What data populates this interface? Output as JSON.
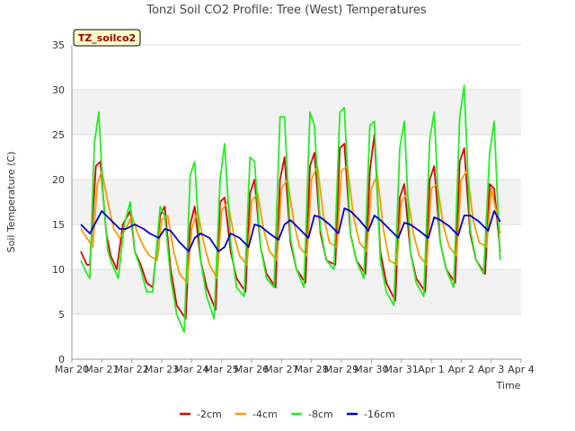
{
  "chart_data": {
    "type": "line",
    "title": "Tonzi Soil CO2 Profile: Tree (West) Temperatures",
    "xlabel": "Time",
    "ylabel": "Soil Temperature (C)",
    "badge": "TZ_soilco2",
    "xlim": [
      0,
      15
    ],
    "ylim": [
      0,
      35
    ],
    "x_ticks": [
      {
        "value": 0,
        "label": "Mar 20"
      },
      {
        "value": 1,
        "label": "Mar 21"
      },
      {
        "value": 2,
        "label": "Mar 22"
      },
      {
        "value": 3,
        "label": "Mar 23"
      },
      {
        "value": 4,
        "label": "Mar 24"
      },
      {
        "value": 5,
        "label": "Mar 25"
      },
      {
        "value": 6,
        "label": "Mar 26"
      },
      {
        "value": 7,
        "label": "Mar 27"
      },
      {
        "value": 8,
        "label": "Mar 28"
      },
      {
        "value": 9,
        "label": "Mar 29"
      },
      {
        "value": 10,
        "label": "Mar 30"
      },
      {
        "value": 11,
        "label": "Mar 31"
      },
      {
        "value": 12,
        "label": "Apr 1"
      },
      {
        "value": 13,
        "label": "Apr 2"
      },
      {
        "value": 14,
        "label": "Apr 3"
      },
      {
        "value": 15,
        "label": "Apr 4"
      }
    ],
    "y_ticks": [
      0,
      5,
      10,
      15,
      20,
      25,
      30,
      35
    ],
    "grid": true,
    "legend_position": "bottom",
    "series": [
      {
        "name": "-2cm",
        "color": "#dd0000",
        "x": [
          0.3,
          0.5,
          0.6,
          0.8,
          0.95,
          1.15,
          1.3,
          1.5,
          1.7,
          1.95,
          2.1,
          2.3,
          2.5,
          2.7,
          2.95,
          3.1,
          3.3,
          3.5,
          3.8,
          3.95,
          4.1,
          4.3,
          4.5,
          4.8,
          4.95,
          5.1,
          5.3,
          5.5,
          5.8,
          5.95,
          6.1,
          6.3,
          6.5,
          6.8,
          6.95,
          7.1,
          7.3,
          7.5,
          7.8,
          7.95,
          8.1,
          8.3,
          8.5,
          8.8,
          8.95,
          9.1,
          9.3,
          9.5,
          9.8,
          9.95,
          10.1,
          10.3,
          10.5,
          10.8,
          10.95,
          11.1,
          11.3,
          11.5,
          11.8,
          11.95,
          12.1,
          12.3,
          12.5,
          12.8,
          12.95,
          13.1,
          13.3,
          13.5,
          13.8,
          13.95,
          14.1,
          14.3
        ],
        "y": [
          12.0,
          10.5,
          10.5,
          21.5,
          22.0,
          14.0,
          11.5,
          10.0,
          15.0,
          16.5,
          12.0,
          10.5,
          8.5,
          8.0,
          16.0,
          17.0,
          10.0,
          6.0,
          4.5,
          15.0,
          17.0,
          11.0,
          8.0,
          5.5,
          17.5,
          18.0,
          12.0,
          9.0,
          7.5,
          18.5,
          20.0,
          12.5,
          9.5,
          8.0,
          20.0,
          22.5,
          13.0,
          10.0,
          8.5,
          21.5,
          23.0,
          14.0,
          11.0,
          10.5,
          23.5,
          24.0,
          14.0,
          11.0,
          9.5,
          21.0,
          25.0,
          12.0,
          8.5,
          6.5,
          18.0,
          19.5,
          12.0,
          9.0,
          7.5,
          20.0,
          21.5,
          13.0,
          10.0,
          8.5,
          22.0,
          23.5,
          14.0,
          11.0,
          9.5,
          19.5,
          19.0,
          12.0
        ]
      },
      {
        "name": "-4cm",
        "color": "#ff9900",
        "x": [
          0.3,
          0.5,
          0.7,
          0.85,
          1.0,
          1.2,
          1.4,
          1.6,
          1.8,
          2.0,
          2.2,
          2.4,
          2.6,
          2.85,
          3.0,
          3.2,
          3.4,
          3.6,
          3.85,
          4.0,
          4.2,
          4.4,
          4.6,
          4.85,
          5.0,
          5.2,
          5.4,
          5.6,
          5.85,
          6.0,
          6.2,
          6.4,
          6.6,
          6.85,
          7.0,
          7.2,
          7.4,
          7.6,
          7.85,
          8.0,
          8.2,
          8.4,
          8.6,
          8.85,
          9.0,
          9.2,
          9.4,
          9.6,
          9.85,
          10.0,
          10.2,
          10.4,
          10.6,
          10.85,
          11.0,
          11.2,
          11.4,
          11.6,
          11.85,
          12.0,
          12.2,
          12.4,
          12.6,
          12.85,
          13.0,
          13.2,
          13.4,
          13.6,
          13.85,
          14.0,
          14.2,
          14.3
        ],
        "y": [
          14.5,
          13.5,
          12.5,
          19.5,
          21.0,
          17.5,
          14.5,
          13.5,
          14.5,
          16.0,
          14.0,
          12.5,
          11.5,
          11.0,
          15.5,
          16.0,
          12.0,
          9.5,
          8.5,
          14.5,
          16.5,
          13.0,
          10.5,
          9.0,
          16.5,
          17.5,
          14.0,
          11.5,
          10.5,
          17.5,
          18.5,
          14.5,
          12.0,
          11.0,
          19.0,
          20.0,
          15.5,
          12.5,
          11.5,
          20.0,
          21.5,
          16.0,
          13.0,
          12.5,
          21.0,
          21.5,
          16.0,
          13.0,
          12.0,
          19.0,
          20.5,
          14.5,
          11.0,
          10.5,
          17.5,
          18.5,
          14.0,
          11.5,
          10.5,
          19.0,
          19.5,
          15.0,
          12.5,
          11.5,
          20.0,
          21.0,
          15.5,
          13.0,
          12.5,
          19.0,
          16.0,
          14.0
        ]
      },
      {
        "name": "-8cm",
        "color": "#22ee22",
        "x": [
          0.3,
          0.5,
          0.6,
          0.75,
          0.9,
          1.05,
          1.2,
          1.35,
          1.55,
          1.75,
          1.95,
          2.1,
          2.3,
          2.5,
          2.7,
          2.95,
          3.1,
          3.3,
          3.5,
          3.75,
          3.95,
          4.1,
          4.3,
          4.5,
          4.75,
          4.95,
          5.1,
          5.3,
          5.5,
          5.75,
          5.95,
          6.1,
          6.3,
          6.5,
          6.75,
          6.95,
          7.1,
          7.3,
          7.5,
          7.75,
          7.95,
          8.1,
          8.3,
          8.5,
          8.75,
          8.95,
          9.1,
          9.3,
          9.5,
          9.75,
          9.95,
          10.1,
          10.3,
          10.5,
          10.75,
          10.95,
          11.1,
          11.3,
          11.5,
          11.75,
          11.95,
          12.1,
          12.3,
          12.5,
          12.75,
          12.95,
          13.1,
          13.3,
          13.5,
          13.75,
          13.95,
          14.1,
          14.3
        ],
        "y": [
          11.0,
          9.5,
          9.0,
          24.0,
          27.5,
          18.0,
          12.0,
          10.5,
          9.0,
          15.0,
          17.5,
          12.0,
          10.0,
          7.5,
          7.5,
          17.0,
          16.0,
          9.0,
          5.0,
          3.0,
          20.5,
          22.0,
          11.0,
          7.0,
          4.5,
          20.0,
          24.0,
          13.0,
          8.0,
          7.0,
          22.5,
          22.0,
          12.5,
          9.0,
          8.0,
          27.0,
          27.0,
          13.5,
          10.0,
          8.0,
          27.5,
          26.0,
          14.5,
          11.0,
          10.0,
          27.5,
          28.0,
          14.0,
          11.0,
          9.0,
          26.0,
          26.5,
          11.0,
          7.5,
          6.0,
          23.5,
          26.5,
          12.0,
          8.5,
          7.0,
          24.5,
          27.5,
          13.0,
          10.0,
          8.0,
          27.0,
          30.5,
          14.5,
          11.0,
          9.5,
          23.0,
          26.5,
          11.0
        ]
      },
      {
        "name": "-16cm",
        "color": "#0000cc",
        "x": [
          0.3,
          0.6,
          1.0,
          1.3,
          1.6,
          1.8,
          2.1,
          2.4,
          2.6,
          2.9,
          3.1,
          3.3,
          3.6,
          3.9,
          4.1,
          4.3,
          4.6,
          4.9,
          5.1,
          5.3,
          5.6,
          5.9,
          6.1,
          6.3,
          6.6,
          6.9,
          7.1,
          7.3,
          7.6,
          7.9,
          8.1,
          8.3,
          8.6,
          8.9,
          9.1,
          9.3,
          9.6,
          9.9,
          10.1,
          10.3,
          10.6,
          10.9,
          11.1,
          11.3,
          11.6,
          11.9,
          12.1,
          12.3,
          12.6,
          12.9,
          13.1,
          13.3,
          13.6,
          13.9,
          14.1,
          14.3
        ],
        "y": [
          15.0,
          14.0,
          16.5,
          15.5,
          14.5,
          14.5,
          15.0,
          14.5,
          14.0,
          13.5,
          14.5,
          14.3,
          13.0,
          12.0,
          13.5,
          14.0,
          13.5,
          12.0,
          12.5,
          14.0,
          13.5,
          12.5,
          15.0,
          14.8,
          14.0,
          13.3,
          15.0,
          15.5,
          14.5,
          13.5,
          16.0,
          15.8,
          15.0,
          14.0,
          16.8,
          16.5,
          15.5,
          14.3,
          16.0,
          15.5,
          14.5,
          13.5,
          15.2,
          15.0,
          14.3,
          13.5,
          15.8,
          15.5,
          14.8,
          13.8,
          16.0,
          16.0,
          15.3,
          14.3,
          16.5,
          15.3
        ]
      }
    ]
  }
}
